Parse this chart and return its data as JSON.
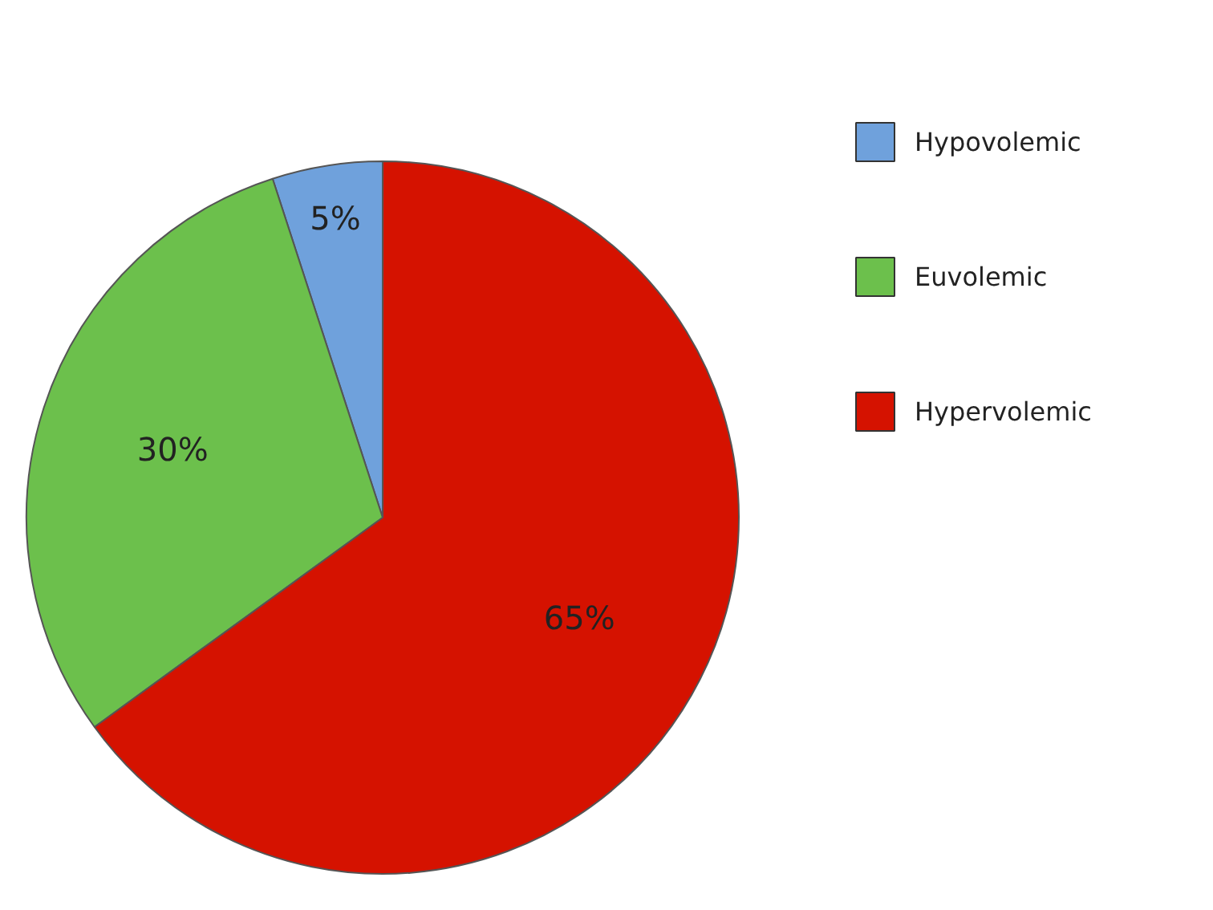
{
  "chart_data": {
    "type": "pie",
    "categories": [
      "Hypovolemic",
      "Euvolemic",
      "Hypervolemic"
    ],
    "values": [
      5,
      30,
      65
    ],
    "colors": [
      "#6fa1dc",
      "#6cc04c",
      "#d51200"
    ],
    "value_labels": [
      "5%",
      "30%",
      "65%"
    ],
    "legend": "top right"
  }
}
